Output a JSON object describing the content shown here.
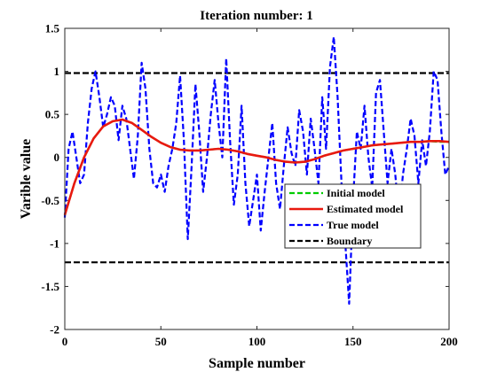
{
  "chart_data": {
    "type": "line",
    "title": "Iteration number: 1",
    "xlabel": "Sample number",
    "ylabel": "Varible value",
    "xlim": [
      0,
      200
    ],
    "ylim": [
      -2,
      1.5
    ],
    "xticks": [
      0,
      50,
      100,
      150,
      200
    ],
    "xtick_labels": [
      "0",
      "50",
      "100",
      "150",
      "200"
    ],
    "yticks": [
      -2,
      -1.5,
      -1,
      -0.5,
      0,
      0.5,
      1,
      1.5
    ],
    "ytick_labels": [
      "-2",
      "-1.5",
      "-1",
      "-0.5",
      "0",
      "0.5",
      "1",
      "1.5"
    ],
    "grid": false,
    "legend_position": "lower-right",
    "series": [
      {
        "name": "Initial model",
        "color": "#00cc00",
        "style": "dashed",
        "x": [
          0,
          5,
          10,
          15,
          20,
          25,
          30,
          35,
          40,
          45,
          50,
          55,
          60,
          65,
          70,
          75,
          80,
          85,
          90,
          95,
          100,
          105,
          110,
          115,
          120,
          125,
          130,
          135,
          140,
          145,
          150,
          155,
          160,
          165,
          170,
          175,
          180,
          185,
          190,
          195,
          200
        ],
        "y": [
          -0.67,
          -0.3,
          0.0,
          0.22,
          0.36,
          0.42,
          0.44,
          0.4,
          0.32,
          0.24,
          0.17,
          0.12,
          0.09,
          0.08,
          0.08,
          0.09,
          0.1,
          0.09,
          0.07,
          0.04,
          0.02,
          0.0,
          -0.03,
          -0.05,
          -0.06,
          -0.05,
          -0.02,
          0.02,
          0.05,
          0.08,
          0.1,
          0.12,
          0.14,
          0.15,
          0.16,
          0.17,
          0.18,
          0.18,
          0.19,
          0.18,
          0.18
        ]
      },
      {
        "name": "Estimated model",
        "color": "#e8190f",
        "style": "solid",
        "x": [
          0,
          5,
          10,
          15,
          20,
          25,
          30,
          35,
          40,
          45,
          50,
          55,
          60,
          65,
          70,
          75,
          80,
          85,
          90,
          95,
          100,
          105,
          110,
          115,
          120,
          125,
          130,
          135,
          140,
          145,
          150,
          155,
          160,
          165,
          170,
          175,
          180,
          185,
          190,
          195,
          200
        ],
        "y": [
          -0.67,
          -0.3,
          0.0,
          0.22,
          0.36,
          0.42,
          0.44,
          0.4,
          0.32,
          0.24,
          0.17,
          0.12,
          0.09,
          0.08,
          0.08,
          0.09,
          0.1,
          0.09,
          0.07,
          0.04,
          0.02,
          0.0,
          -0.03,
          -0.05,
          -0.06,
          -0.05,
          -0.02,
          0.02,
          0.05,
          0.08,
          0.1,
          0.12,
          0.14,
          0.15,
          0.16,
          0.17,
          0.18,
          0.18,
          0.19,
          0.19,
          0.18
        ]
      },
      {
        "name": "True model",
        "color": "#0000ff",
        "style": "dashed",
        "x": [
          0,
          2,
          4,
          6,
          8,
          10,
          12,
          14,
          16,
          18,
          20,
          22,
          24,
          26,
          28,
          30,
          32,
          34,
          36,
          38,
          40,
          42,
          44,
          46,
          48,
          50,
          52,
          54,
          56,
          58,
          60,
          62,
          64,
          66,
          68,
          70,
          72,
          74,
          76,
          78,
          80,
          82,
          84,
          86,
          88,
          90,
          92,
          94,
          96,
          98,
          100,
          102,
          104,
          106,
          108,
          110,
          112,
          114,
          116,
          118,
          120,
          122,
          124,
          126,
          128,
          130,
          132,
          134,
          136,
          138,
          140,
          142,
          144,
          146,
          148,
          150,
          152,
          154,
          156,
          158,
          160,
          162,
          164,
          166,
          168,
          170,
          172,
          174,
          176,
          178,
          180,
          182,
          184,
          186,
          188,
          190,
          192,
          194,
          196,
          198,
          200
        ],
        "y": [
          -0.7,
          0.1,
          0.3,
          0.0,
          -0.3,
          -0.2,
          0.4,
          0.8,
          1.0,
          0.7,
          0.35,
          0.5,
          0.7,
          0.6,
          0.2,
          0.6,
          0.45,
          0.1,
          -0.25,
          0.25,
          1.1,
          0.8,
          0.1,
          -0.3,
          -0.35,
          -0.2,
          -0.4,
          -0.1,
          0.1,
          0.4,
          0.95,
          0.2,
          -0.95,
          -0.1,
          0.85,
          0.3,
          -0.4,
          0.0,
          0.5,
          0.9,
          0.4,
          0.0,
          1.15,
          0.2,
          -0.55,
          -0.2,
          0.6,
          -0.3,
          -0.8,
          -0.5,
          -0.2,
          -0.85,
          -0.4,
          0.0,
          0.4,
          -0.3,
          -0.6,
          -0.1,
          0.35,
          0.05,
          -0.1,
          0.55,
          0.3,
          -0.2,
          0.45,
          0.1,
          -0.3,
          0.7,
          0.1,
          1.05,
          1.4,
          0.7,
          -0.3,
          -1.0,
          -1.7,
          -0.5,
          0.3,
          0.1,
          0.6,
          0.0,
          -0.35,
          0.75,
          0.9,
          0.3,
          -0.3,
          0.1,
          -0.2,
          -0.7,
          -0.2,
          0.1,
          0.45,
          0.25,
          -0.3,
          0.2,
          -0.1,
          0.3,
          1.0,
          0.9,
          0.3,
          -0.2,
          -0.1
        ]
      },
      {
        "name": "Boundary",
        "color": "#000000",
        "style": "dashed",
        "x": [
          0,
          200
        ],
        "y": [
          0.98,
          0.98
        ]
      },
      {
        "name": "",
        "color": "#000000",
        "style": "dashed",
        "x": [
          0,
          200
        ],
        "y": [
          -1.22,
          -1.22
        ]
      }
    ]
  }
}
